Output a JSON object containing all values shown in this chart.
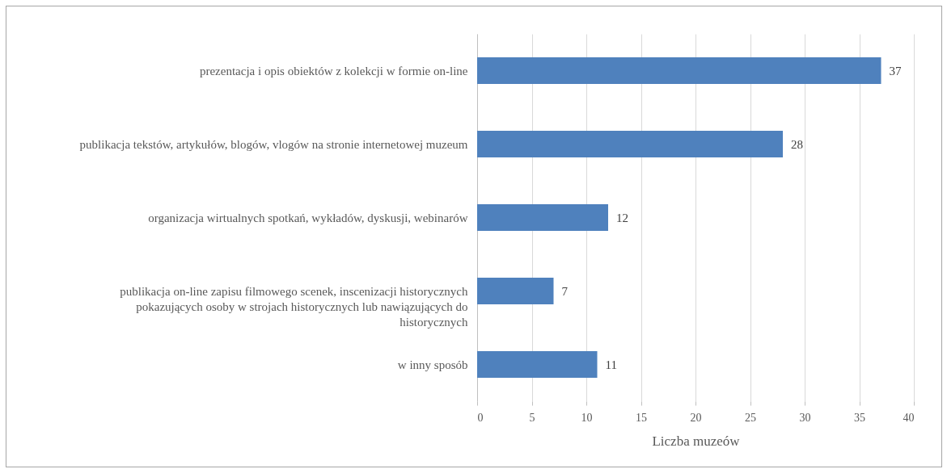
{
  "chart_data": {
    "type": "bar",
    "orientation": "horizontal",
    "categories": [
      "prezentacja i opis obiektów z kolekcji w formie on-line",
      "publikacja tekstów, artykułów, blogów, vlogów na stronie internetowej muzeum",
      "organizacja wirtualnych spotkań, wykładów, dyskusji, webinarów",
      "publikacja on-line zapisu filmowego scenek, inscenizacji historycznych\npokazujących osoby w strojach historycznych lub nawiązujących do\nhistorycznych",
      "w inny sposób"
    ],
    "values": [
      37,
      28,
      12,
      7,
      11
    ],
    "color": "#4f81bd",
    "xlabel": "Liczba muzeów",
    "xlim": [
      0,
      40
    ],
    "xticks": [
      0,
      5,
      10,
      15,
      20,
      25,
      30,
      35,
      40
    ],
    "grid": "x",
    "data_labels": true
  }
}
